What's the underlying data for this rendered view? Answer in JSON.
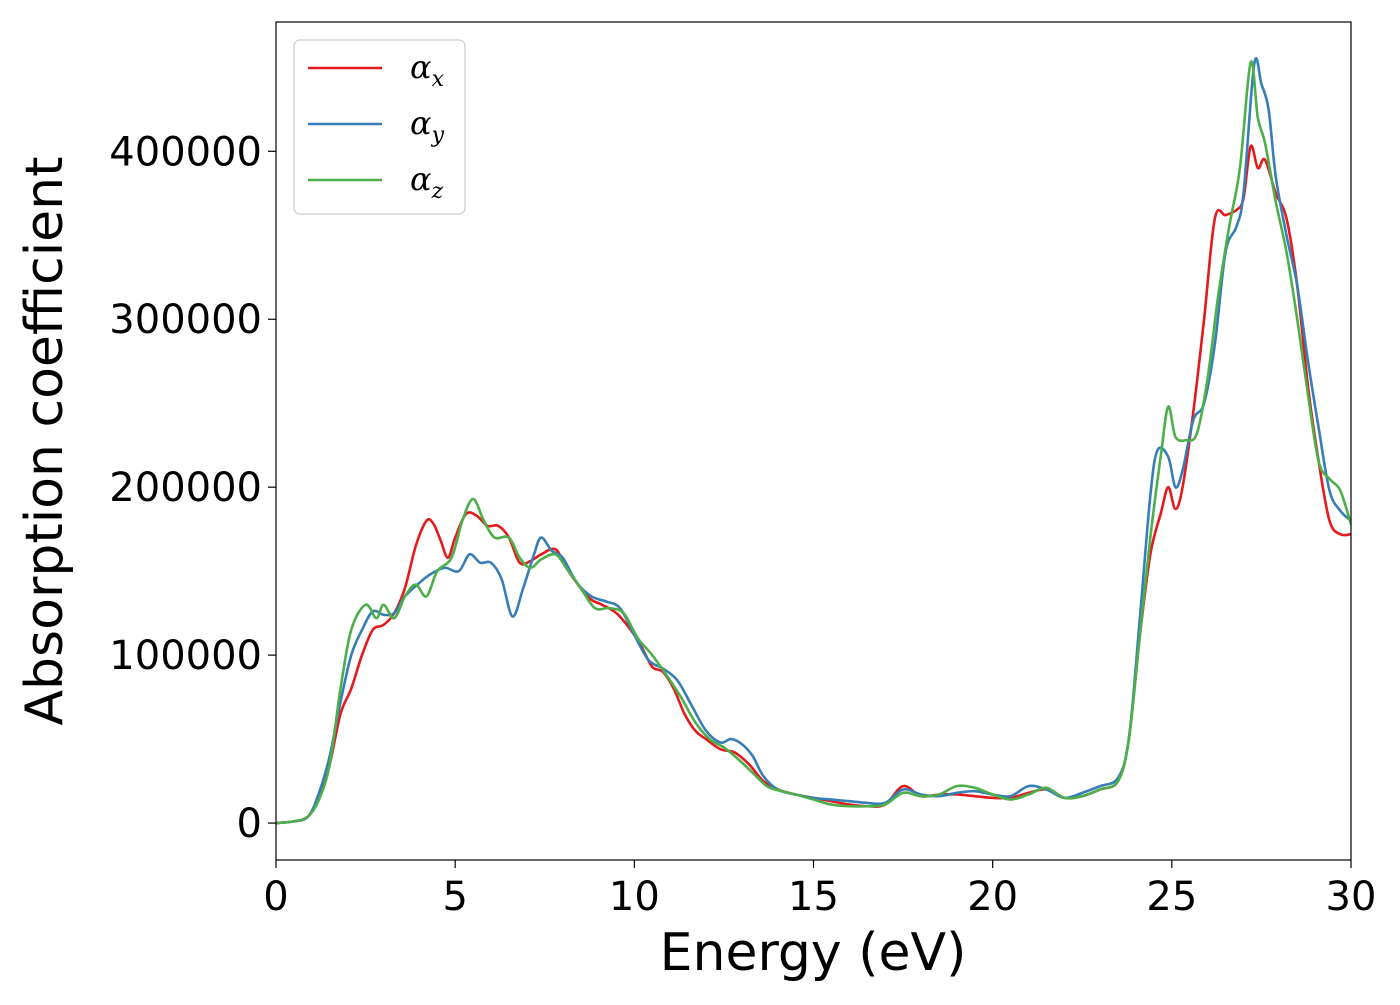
{
  "chart_data": {
    "type": "line",
    "xlabel": "Energy (eV)",
    "ylabel": "Absorption coefficient",
    "xlim": [
      0,
      30
    ],
    "ylim": [
      -22000,
      477000
    ],
    "xticks": [
      "0",
      "5",
      "10",
      "15",
      "20",
      "25",
      "30"
    ],
    "yticks": [
      "0",
      "100000",
      "200000",
      "300000",
      "400000"
    ],
    "grid": false,
    "legend": {
      "placement": "top-left",
      "entries": [
        {
          "symbol": "α",
          "subscript": "x",
          "color": "#e41a1c"
        },
        {
          "symbol": "α",
          "subscript": "y",
          "color": "#377eb8"
        },
        {
          "symbol": "α",
          "subscript": "z",
          "color": "#4daf4a"
        }
      ]
    },
    "series": [
      {
        "name": "α_x",
        "color": "#e41a1c",
        "points": [
          [
            0,
            0
          ],
          [
            0.5,
            1000
          ],
          [
            0.9,
            4000
          ],
          [
            1.2,
            15000
          ],
          [
            1.5,
            35000
          ],
          [
            1.8,
            65000
          ],
          [
            2.1,
            80000
          ],
          [
            2.4,
            100000
          ],
          [
            2.7,
            115000
          ],
          [
            3.0,
            118000
          ],
          [
            3.3,
            125000
          ],
          [
            3.6,
            140000
          ],
          [
            3.9,
            165000
          ],
          [
            4.2,
            180000
          ],
          [
            4.4,
            178000
          ],
          [
            4.6,
            168000
          ],
          [
            4.8,
            158000
          ],
          [
            5.0,
            170000
          ],
          [
            5.3,
            184000
          ],
          [
            5.6,
            183000
          ],
          [
            5.9,
            177000
          ],
          [
            6.2,
            177000
          ],
          [
            6.5,
            170000
          ],
          [
            6.8,
            155000
          ],
          [
            7.1,
            156000
          ],
          [
            7.4,
            160000
          ],
          [
            7.8,
            163000
          ],
          [
            8.1,
            152000
          ],
          [
            8.5,
            140000
          ],
          [
            8.8,
            133000
          ],
          [
            9.1,
            130000
          ],
          [
            9.5,
            125000
          ],
          [
            9.9,
            115000
          ],
          [
            10.2,
            105000
          ],
          [
            10.5,
            93000
          ],
          [
            10.8,
            90000
          ],
          [
            11.1,
            80000
          ],
          [
            11.4,
            65000
          ],
          [
            11.7,
            55000
          ],
          [
            12.0,
            50000
          ],
          [
            12.4,
            44000
          ],
          [
            12.8,
            42000
          ],
          [
            13.2,
            35000
          ],
          [
            13.6,
            25000
          ],
          [
            14.0,
            20000
          ],
          [
            14.5,
            17000
          ],
          [
            15.0,
            15000
          ],
          [
            15.5,
            13000
          ],
          [
            16.0,
            11000
          ],
          [
            16.5,
            10000
          ],
          [
            17.0,
            11000
          ],
          [
            17.5,
            22000
          ],
          [
            18.0,
            16000
          ],
          [
            18.5,
            17000
          ],
          [
            19.0,
            17000
          ],
          [
            19.5,
            16000
          ],
          [
            20.0,
            15000
          ],
          [
            20.5,
            15000
          ],
          [
            21.0,
            18000
          ],
          [
            21.5,
            20000
          ],
          [
            22.0,
            15000
          ],
          [
            22.5,
            16000
          ],
          [
            23.0,
            20000
          ],
          [
            23.5,
            25000
          ],
          [
            23.8,
            50000
          ],
          [
            24.1,
            110000
          ],
          [
            24.4,
            160000
          ],
          [
            24.7,
            185000
          ],
          [
            24.9,
            200000
          ],
          [
            25.1,
            187000
          ],
          [
            25.3,
            200000
          ],
          [
            25.6,
            245000
          ],
          [
            25.9,
            300000
          ],
          [
            26.2,
            360000
          ],
          [
            26.5,
            362000
          ],
          [
            26.8,
            365000
          ],
          [
            27.0,
            372000
          ],
          [
            27.2,
            403000
          ],
          [
            27.4,
            390000
          ],
          [
            27.6,
            395000
          ],
          [
            27.9,
            375000
          ],
          [
            28.2,
            360000
          ],
          [
            28.5,
            320000
          ],
          [
            28.8,
            260000
          ],
          [
            29.1,
            215000
          ],
          [
            29.4,
            180000
          ],
          [
            29.7,
            172000
          ],
          [
            30.0,
            172000
          ]
        ]
      },
      {
        "name": "α_y",
        "color": "#377eb8",
        "points": [
          [
            0,
            0
          ],
          [
            0.5,
            1000
          ],
          [
            0.9,
            4000
          ],
          [
            1.2,
            18000
          ],
          [
            1.5,
            40000
          ],
          [
            1.8,
            72000
          ],
          [
            2.1,
            100000
          ],
          [
            2.4,
            115000
          ],
          [
            2.7,
            126000
          ],
          [
            3.0,
            124000
          ],
          [
            3.3,
            125000
          ],
          [
            3.6,
            135000
          ],
          [
            4.0,
            143000
          ],
          [
            4.3,
            148000
          ],
          [
            4.7,
            152000
          ],
          [
            5.1,
            150000
          ],
          [
            5.4,
            160000
          ],
          [
            5.7,
            155000
          ],
          [
            6.0,
            155000
          ],
          [
            6.3,
            145000
          ],
          [
            6.6,
            123000
          ],
          [
            6.9,
            140000
          ],
          [
            7.2,
            160000
          ],
          [
            7.4,
            170000
          ],
          [
            7.7,
            162000
          ],
          [
            8.0,
            158000
          ],
          [
            8.4,
            143000
          ],
          [
            8.8,
            135000
          ],
          [
            9.2,
            132000
          ],
          [
            9.6,
            128000
          ],
          [
            10.0,
            112000
          ],
          [
            10.4,
            97000
          ],
          [
            10.8,
            92000
          ],
          [
            11.2,
            85000
          ],
          [
            11.6,
            70000
          ],
          [
            12.0,
            55000
          ],
          [
            12.4,
            48000
          ],
          [
            12.7,
            50000
          ],
          [
            13.0,
            47000
          ],
          [
            13.3,
            40000
          ],
          [
            13.6,
            28000
          ],
          [
            14.0,
            20000
          ],
          [
            14.5,
            17000
          ],
          [
            15.0,
            15000
          ],
          [
            15.5,
            14000
          ],
          [
            16.0,
            13000
          ],
          [
            16.5,
            12000
          ],
          [
            17.0,
            12000
          ],
          [
            17.5,
            20000
          ],
          [
            18.0,
            17000
          ],
          [
            18.5,
            16000
          ],
          [
            19.0,
            18000
          ],
          [
            19.5,
            19000
          ],
          [
            20.0,
            17000
          ],
          [
            20.5,
            16000
          ],
          [
            21.0,
            22000
          ],
          [
            21.5,
            20000
          ],
          [
            22.0,
            15000
          ],
          [
            22.5,
            18000
          ],
          [
            23.0,
            22000
          ],
          [
            23.5,
            27000
          ],
          [
            23.8,
            50000
          ],
          [
            24.1,
            120000
          ],
          [
            24.4,
            195000
          ],
          [
            24.6,
            222000
          ],
          [
            24.9,
            218000
          ],
          [
            25.1,
            200000
          ],
          [
            25.3,
            210000
          ],
          [
            25.6,
            240000
          ],
          [
            25.9,
            250000
          ],
          [
            26.2,
            285000
          ],
          [
            26.5,
            340000
          ],
          [
            26.8,
            355000
          ],
          [
            27.0,
            375000
          ],
          [
            27.3,
            452000
          ],
          [
            27.5,
            440000
          ],
          [
            27.7,
            425000
          ],
          [
            27.9,
            385000
          ],
          [
            28.2,
            350000
          ],
          [
            28.5,
            320000
          ],
          [
            28.8,
            275000
          ],
          [
            29.1,
            235000
          ],
          [
            29.4,
            198000
          ],
          [
            29.7,
            186000
          ],
          [
            30.0,
            180000
          ]
        ]
      },
      {
        "name": "α_z",
        "color": "#4daf4a",
        "points": [
          [
            0,
            0
          ],
          [
            0.5,
            1000
          ],
          [
            0.9,
            4000
          ],
          [
            1.2,
            14000
          ],
          [
            1.5,
            35000
          ],
          [
            1.8,
            80000
          ],
          [
            2.1,
            115000
          ],
          [
            2.5,
            130000
          ],
          [
            2.8,
            122000
          ],
          [
            3.0,
            130000
          ],
          [
            3.3,
            122000
          ],
          [
            3.6,
            135000
          ],
          [
            3.9,
            142000
          ],
          [
            4.2,
            135000
          ],
          [
            4.5,
            150000
          ],
          [
            4.9,
            158000
          ],
          [
            5.2,
            180000
          ],
          [
            5.5,
            193000
          ],
          [
            5.8,
            180000
          ],
          [
            6.1,
            170000
          ],
          [
            6.5,
            170000
          ],
          [
            6.8,
            158000
          ],
          [
            7.1,
            152000
          ],
          [
            7.4,
            157000
          ],
          [
            7.8,
            160000
          ],
          [
            8.1,
            152000
          ],
          [
            8.5,
            140000
          ],
          [
            8.9,
            128000
          ],
          [
            9.3,
            128000
          ],
          [
            9.7,
            125000
          ],
          [
            10.1,
            110000
          ],
          [
            10.5,
            100000
          ],
          [
            10.9,
            88000
          ],
          [
            11.3,
            75000
          ],
          [
            11.7,
            60000
          ],
          [
            12.1,
            50000
          ],
          [
            12.5,
            45000
          ],
          [
            12.9,
            38000
          ],
          [
            13.3,
            30000
          ],
          [
            13.7,
            22000
          ],
          [
            14.1,
            19000
          ],
          [
            14.5,
            17000
          ],
          [
            15.0,
            14000
          ],
          [
            15.5,
            11000
          ],
          [
            16.0,
            10000
          ],
          [
            16.5,
            10000
          ],
          [
            17.0,
            11000
          ],
          [
            17.5,
            18000
          ],
          [
            18.0,
            16000
          ],
          [
            18.5,
            17000
          ],
          [
            19.0,
            22000
          ],
          [
            19.5,
            21000
          ],
          [
            20.0,
            17000
          ],
          [
            20.5,
            14000
          ],
          [
            21.0,
            17000
          ],
          [
            21.5,
            21000
          ],
          [
            22.0,
            15000
          ],
          [
            22.5,
            16000
          ],
          [
            23.0,
            20000
          ],
          [
            23.5,
            25000
          ],
          [
            23.8,
            50000
          ],
          [
            24.1,
            110000
          ],
          [
            24.4,
            170000
          ],
          [
            24.7,
            220000
          ],
          [
            24.9,
            248000
          ],
          [
            25.1,
            230000
          ],
          [
            25.4,
            228000
          ],
          [
            25.7,
            232000
          ],
          [
            26.0,
            265000
          ],
          [
            26.3,
            315000
          ],
          [
            26.6,
            355000
          ],
          [
            26.9,
            390000
          ],
          [
            27.2,
            453000
          ],
          [
            27.4,
            420000
          ],
          [
            27.6,
            405000
          ],
          [
            27.9,
            370000
          ],
          [
            28.2,
            340000
          ],
          [
            28.5,
            300000
          ],
          [
            28.8,
            255000
          ],
          [
            29.1,
            215000
          ],
          [
            29.4,
            205000
          ],
          [
            29.7,
            198000
          ],
          [
            30.0,
            178000
          ]
        ]
      }
    ]
  }
}
